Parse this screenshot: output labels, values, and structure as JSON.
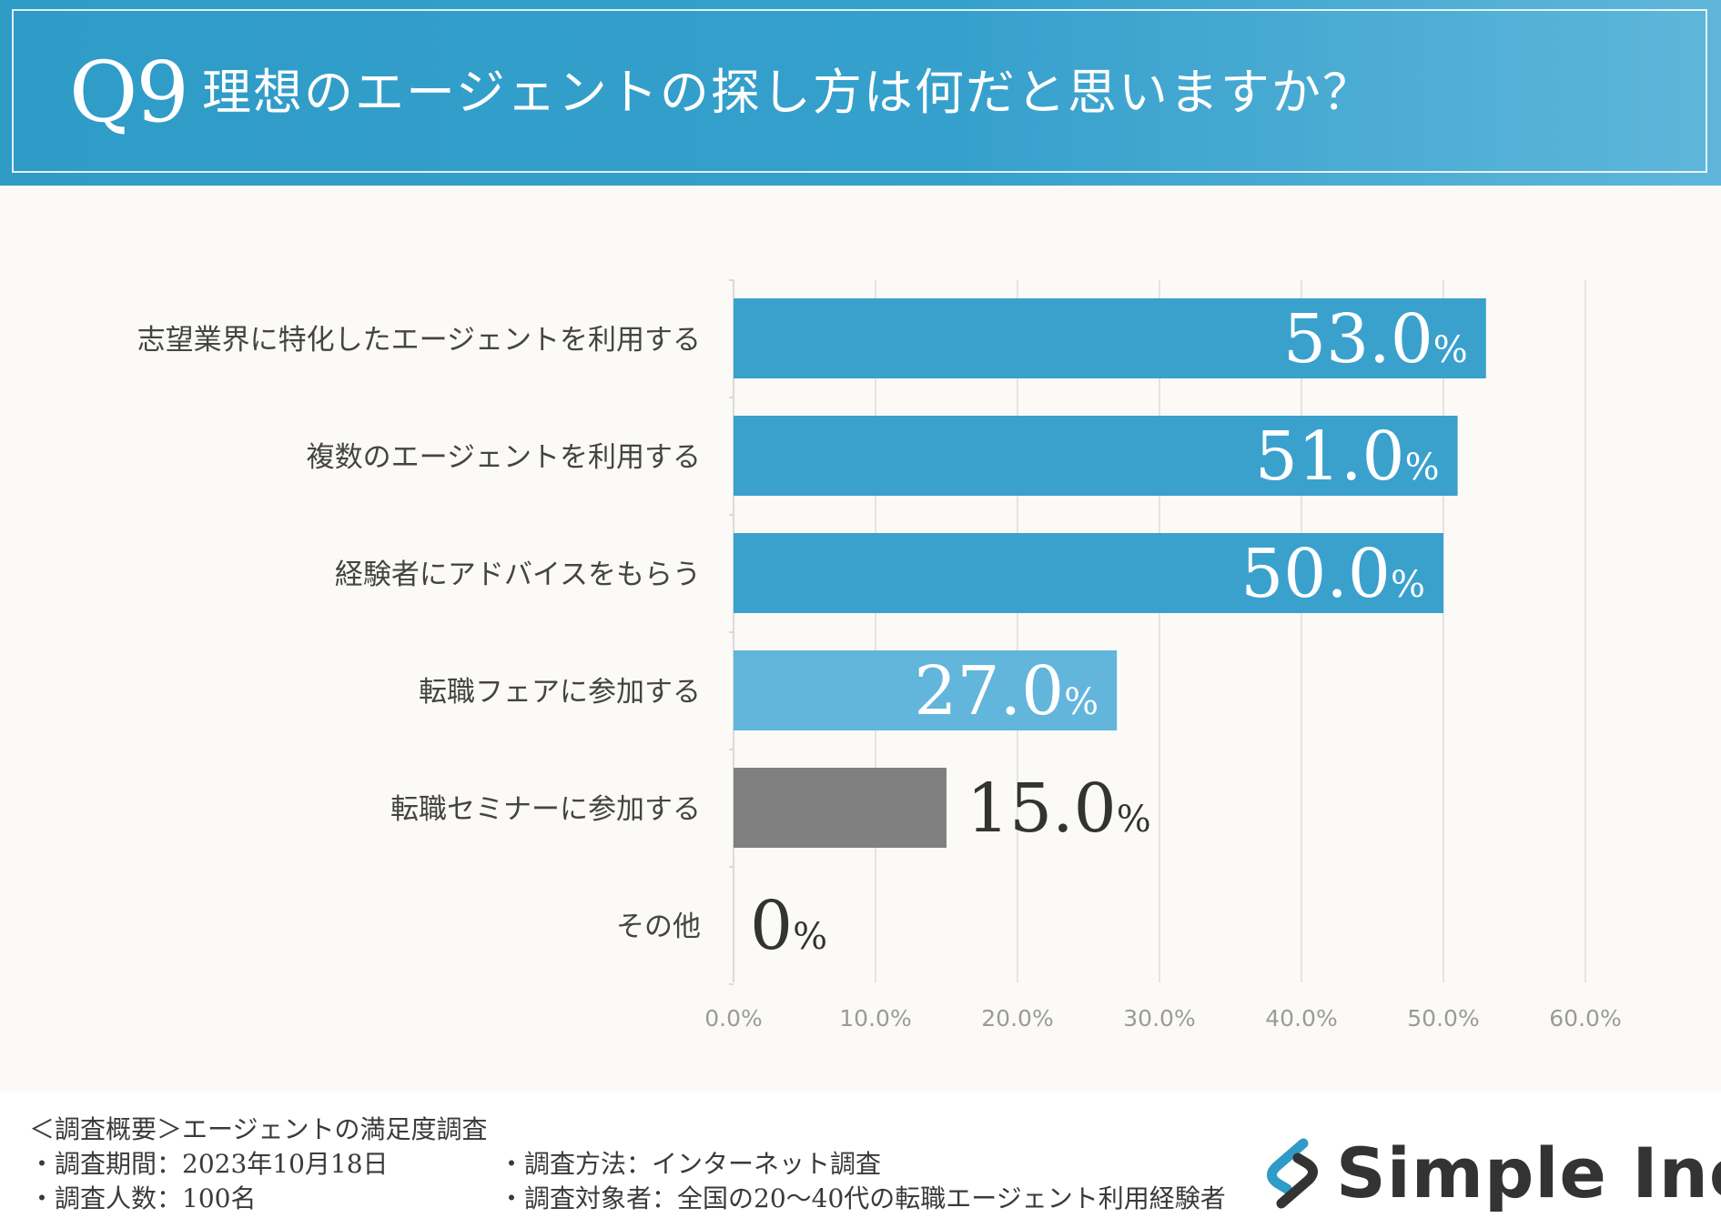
{
  "header": {
    "q_number": "Q9",
    "question": "理想のエージェントの探し方は何だと思いますか？"
  },
  "chart_data": {
    "type": "bar",
    "orientation": "horizontal",
    "categories": [
      "志望業界に特化したエージェントを利用する",
      "複数のエージェントを利用する",
      "経験者にアドバイスをもらう",
      "転職フェアに参加する",
      "転職セミナーに参加する",
      "その他"
    ],
    "values": [
      53.0,
      51.0,
      50.0,
      27.0,
      15.0,
      0
    ],
    "value_labels": [
      "53.0",
      "51.0",
      "50.0",
      "27.0",
      "15.0",
      "0"
    ],
    "value_unit": "%",
    "bar_colors": [
      "#3aa1cd",
      "#3aa1cd",
      "#3aa1cd",
      "#62b5db",
      "#808080",
      "#808080"
    ],
    "xlim": [
      0,
      60
    ],
    "xticks": [
      "0.0%",
      "10.0%",
      "20.0%",
      "30.0%",
      "40.0%",
      "50.0%",
      "60.0%"
    ],
    "grid": true,
    "title": "",
    "xlabel": "",
    "ylabel": ""
  },
  "footer": {
    "summary_title": "＜調査概要＞エージェントの満足度調査",
    "period": "・調査期間：2023年10月18日",
    "count": "・調査人数：100名",
    "method": "・調査方法：インターネット調査",
    "target": "・調査対象者：全国の20〜40代の転職エージェント利用経験者"
  },
  "brand": {
    "name": "Simple Inc.",
    "logo_icon": "simple-s-logo-icon",
    "accent": "#2f9bc7"
  }
}
